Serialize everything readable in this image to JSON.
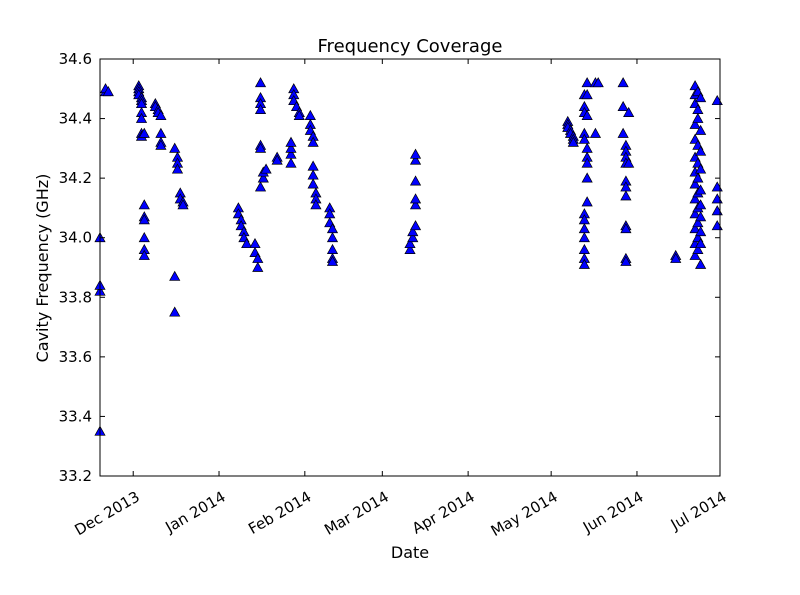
{
  "chart_data": {
    "type": "scatter",
    "title": "Frequency Coverage",
    "xlabel": "Date",
    "ylabel": "Cavity Frequency (GHz)",
    "ylim": [
      33.2,
      34.6
    ],
    "xlim": [
      "2013-11-19",
      "2014-07-01"
    ],
    "yticks": [
      "33.2",
      "33.4",
      "33.6",
      "33.8",
      "34.0",
      "34.2",
      "34.4",
      "34.6"
    ],
    "xticks": [
      {
        "date": "2013-12-01",
        "label": "Dec 2013"
      },
      {
        "date": "2014-01-01",
        "label": "Jan 2014"
      },
      {
        "date": "2014-02-01",
        "label": "Feb 2014"
      },
      {
        "date": "2014-03-01",
        "label": "Mar 2014"
      },
      {
        "date": "2014-04-01",
        "label": "Apr 2014"
      },
      {
        "date": "2014-05-01",
        "label": "May 2014"
      },
      {
        "date": "2014-06-01",
        "label": "Jun 2014"
      },
      {
        "date": "2014-07-01",
        "label": "Jul 2014"
      }
    ],
    "grid": false,
    "marker": "triangle",
    "marker_color": "#0000ff",
    "series": [
      {
        "points": [
          [
            "2013-11-19",
            33.35
          ],
          [
            "2013-11-19",
            33.82
          ],
          [
            "2013-11-19",
            33.84
          ],
          [
            "2013-11-19",
            34.0
          ],
          [
            "2013-11-21",
            34.49
          ],
          [
            "2013-11-21",
            34.5
          ],
          [
            "2013-11-22",
            34.49
          ],
          [
            "2013-12-03",
            34.51
          ],
          [
            "2013-12-03",
            34.5
          ],
          [
            "2013-12-03",
            34.49
          ],
          [
            "2013-12-03",
            34.48
          ],
          [
            "2013-12-04",
            34.47
          ],
          [
            "2013-12-04",
            34.46
          ],
          [
            "2013-12-04",
            34.45
          ],
          [
            "2013-12-04",
            34.42
          ],
          [
            "2013-12-04",
            34.4
          ],
          [
            "2013-12-04",
            34.35
          ],
          [
            "2013-12-04",
            34.34
          ],
          [
            "2013-12-05",
            34.35
          ],
          [
            "2013-12-05",
            34.11
          ],
          [
            "2013-12-05",
            34.07
          ],
          [
            "2013-12-05",
            34.06
          ],
          [
            "2013-12-05",
            34.0
          ],
          [
            "2013-12-05",
            33.96
          ],
          [
            "2013-12-05",
            33.94
          ],
          [
            "2013-12-09",
            34.45
          ],
          [
            "2013-12-09",
            34.44
          ],
          [
            "2013-12-10",
            34.43
          ],
          [
            "2013-12-10",
            34.42
          ],
          [
            "2013-12-11",
            34.41
          ],
          [
            "2013-12-11",
            34.35
          ],
          [
            "2013-12-11",
            34.32
          ],
          [
            "2013-12-11",
            34.31
          ],
          [
            "2013-12-16",
            34.3
          ],
          [
            "2013-12-16",
            33.87
          ],
          [
            "2013-12-16",
            33.75
          ],
          [
            "2013-12-17",
            34.27
          ],
          [
            "2013-12-17",
            34.25
          ],
          [
            "2013-12-17",
            34.23
          ],
          [
            "2013-12-18",
            34.15
          ],
          [
            "2013-12-18",
            34.13
          ],
          [
            "2013-12-19",
            34.12
          ],
          [
            "2013-12-19",
            34.11
          ],
          [
            "2014-01-08",
            34.1
          ],
          [
            "2014-01-08",
            34.08
          ],
          [
            "2014-01-09",
            34.06
          ],
          [
            "2014-01-09",
            34.04
          ],
          [
            "2014-01-10",
            34.02
          ],
          [
            "2014-01-10",
            34.0
          ],
          [
            "2014-01-11",
            33.98
          ],
          [
            "2014-01-14",
            33.98
          ],
          [
            "2014-01-14",
            33.95
          ],
          [
            "2014-01-15",
            33.93
          ],
          [
            "2014-01-15",
            33.9
          ],
          [
            "2014-01-16",
            34.52
          ],
          [
            "2014-01-16",
            34.47
          ],
          [
            "2014-01-16",
            34.45
          ],
          [
            "2014-01-16",
            34.43
          ],
          [
            "2014-01-16",
            34.31
          ],
          [
            "2014-01-16",
            34.3
          ],
          [
            "2014-01-16",
            34.17
          ],
          [
            "2014-01-17",
            34.2
          ],
          [
            "2014-01-17",
            34.22
          ],
          [
            "2014-01-18",
            34.23
          ],
          [
            "2014-01-22",
            34.27
          ],
          [
            "2014-01-22",
            34.26
          ],
          [
            "2014-01-27",
            34.25
          ],
          [
            "2014-01-27",
            34.28
          ],
          [
            "2014-01-27",
            34.3
          ],
          [
            "2014-01-27",
            34.32
          ],
          [
            "2014-01-28",
            34.5
          ],
          [
            "2014-01-28",
            34.48
          ],
          [
            "2014-01-28",
            34.46
          ],
          [
            "2014-01-29",
            34.44
          ],
          [
            "2014-01-30",
            34.42
          ],
          [
            "2014-01-30",
            34.41
          ],
          [
            "2014-02-03",
            34.41
          ],
          [
            "2014-02-03",
            34.38
          ],
          [
            "2014-02-03",
            34.36
          ],
          [
            "2014-02-04",
            34.34
          ],
          [
            "2014-02-04",
            34.32
          ],
          [
            "2014-02-04",
            34.24
          ],
          [
            "2014-02-04",
            34.21
          ],
          [
            "2014-02-04",
            34.18
          ],
          [
            "2014-02-05",
            34.15
          ],
          [
            "2014-02-05",
            34.13
          ],
          [
            "2014-02-05",
            34.11
          ],
          [
            "2014-02-10",
            34.1
          ],
          [
            "2014-02-10",
            34.08
          ],
          [
            "2014-02-10",
            34.05
          ],
          [
            "2014-02-11",
            34.03
          ],
          [
            "2014-02-11",
            34.0
          ],
          [
            "2014-02-11",
            33.96
          ],
          [
            "2014-02-11",
            33.93
          ],
          [
            "2014-02-11",
            33.92
          ],
          [
            "2014-03-11",
            33.96
          ],
          [
            "2014-03-11",
            33.98
          ],
          [
            "2014-03-12",
            34.0
          ],
          [
            "2014-03-12",
            34.02
          ],
          [
            "2014-03-13",
            34.04
          ],
          [
            "2014-03-13",
            34.11
          ],
          [
            "2014-03-13",
            34.13
          ],
          [
            "2014-03-13",
            34.19
          ],
          [
            "2014-03-13",
            34.26
          ],
          [
            "2014-03-13",
            34.28
          ],
          [
            "2014-05-07",
            34.39
          ],
          [
            "2014-05-07",
            34.38
          ],
          [
            "2014-05-07",
            34.37
          ],
          [
            "2014-05-08",
            34.36
          ],
          [
            "2014-05-08",
            34.35
          ],
          [
            "2014-05-09",
            34.34
          ],
          [
            "2014-05-09",
            34.33
          ],
          [
            "2014-05-09",
            34.32
          ],
          [
            "2014-05-13",
            34.48
          ],
          [
            "2014-05-13",
            34.44
          ],
          [
            "2014-05-13",
            34.42
          ],
          [
            "2014-05-13",
            34.35
          ],
          [
            "2014-05-13",
            34.33
          ],
          [
            "2014-05-14",
            34.3
          ],
          [
            "2014-05-14",
            34.27
          ],
          [
            "2014-05-14",
            34.25
          ],
          [
            "2014-05-13",
            34.08
          ],
          [
            "2014-05-13",
            34.06
          ],
          [
            "2014-05-13",
            34.03
          ],
          [
            "2014-05-13",
            34.0
          ],
          [
            "2014-05-13",
            33.96
          ],
          [
            "2014-05-13",
            33.93
          ],
          [
            "2014-05-13",
            33.91
          ],
          [
            "2014-05-14",
            34.12
          ],
          [
            "2014-05-14",
            34.52
          ],
          [
            "2014-05-14",
            34.48
          ],
          [
            "2014-05-14",
            34.41
          ],
          [
            "2014-05-14",
            34.2
          ],
          [
            "2014-05-17",
            34.52
          ],
          [
            "2014-05-17",
            34.35
          ],
          [
            "2014-05-18",
            34.52
          ],
          [
            "2014-05-27",
            34.52
          ],
          [
            "2014-05-27",
            34.44
          ],
          [
            "2014-05-27",
            34.35
          ],
          [
            "2014-05-28",
            34.31
          ],
          [
            "2014-05-28",
            34.29
          ],
          [
            "2014-05-28",
            34.27
          ],
          [
            "2014-05-28",
            34.25
          ],
          [
            "2014-05-28",
            34.19
          ],
          [
            "2014-05-28",
            34.17
          ],
          [
            "2014-05-28",
            34.14
          ],
          [
            "2014-05-28",
            34.04
          ],
          [
            "2014-05-28",
            34.03
          ],
          [
            "2014-05-28",
            33.93
          ],
          [
            "2014-05-28",
            33.92
          ],
          [
            "2014-05-29",
            34.42
          ],
          [
            "2014-05-29",
            34.25
          ],
          [
            "2014-06-15",
            33.94
          ],
          [
            "2014-06-15",
            33.93
          ],
          [
            "2014-06-22",
            34.51
          ],
          [
            "2014-06-22",
            34.48
          ],
          [
            "2014-06-22",
            34.45
          ],
          [
            "2014-06-22",
            34.38
          ],
          [
            "2014-06-22",
            34.33
          ],
          [
            "2014-06-22",
            34.27
          ],
          [
            "2014-06-22",
            34.22
          ],
          [
            "2014-06-22",
            34.18
          ],
          [
            "2014-06-22",
            34.13
          ],
          [
            "2014-06-22",
            34.08
          ],
          [
            "2014-06-22",
            34.03
          ],
          [
            "2014-06-22",
            33.98
          ],
          [
            "2014-06-22",
            33.94
          ],
          [
            "2014-06-23",
            34.49
          ],
          [
            "2014-06-23",
            34.43
          ],
          [
            "2014-06-23",
            34.4
          ],
          [
            "2014-06-23",
            34.31
          ],
          [
            "2014-06-23",
            34.25
          ],
          [
            "2014-06-23",
            34.2
          ],
          [
            "2014-06-23",
            34.15
          ],
          [
            "2014-06-23",
            34.1
          ],
          [
            "2014-06-23",
            34.05
          ],
          [
            "2014-06-23",
            34.0
          ],
          [
            "2014-06-23",
            33.96
          ],
          [
            "2014-06-24",
            34.47
          ],
          [
            "2014-06-24",
            34.36
          ],
          [
            "2014-06-24",
            34.29
          ],
          [
            "2014-06-24",
            34.23
          ],
          [
            "2014-06-24",
            34.16
          ],
          [
            "2014-06-24",
            34.11
          ],
          [
            "2014-06-24",
            34.07
          ],
          [
            "2014-06-24",
            34.02
          ],
          [
            "2014-06-24",
            33.98
          ],
          [
            "2014-06-24",
            33.91
          ],
          [
            "2014-06-30",
            34.46
          ],
          [
            "2014-06-30",
            34.17
          ],
          [
            "2014-06-30",
            34.13
          ],
          [
            "2014-06-30",
            34.09
          ],
          [
            "2014-06-30",
            34.04
          ]
        ]
      }
    ]
  }
}
